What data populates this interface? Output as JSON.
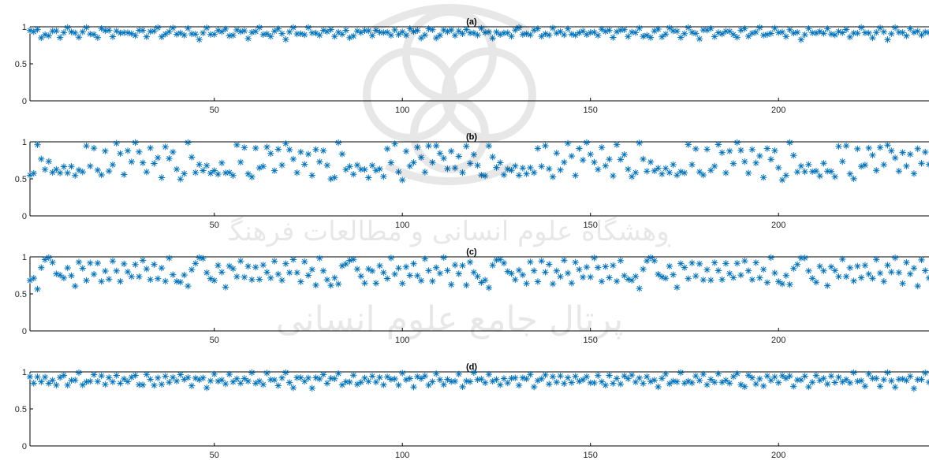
{
  "figure": {
    "watermark_text": "پژوهشگاه علوم انسانی و مطالعات فرهنگی — پرتال جامع علوم انسانی",
    "colors": {
      "marker": "#0072BD",
      "axis": "#000000",
      "background": "#ffffff"
    }
  },
  "chart_data": [
    {
      "type": "scatter",
      "title": "(a)",
      "marker": "*",
      "xlim": [
        1,
        240
      ],
      "ylim": [
        0,
        1
      ],
      "xticks": [
        50,
        100,
        150,
        200
      ],
      "yticks": [
        0,
        0.5,
        1
      ],
      "ytick_labels": [
        "0",
        "0.5",
        "1"
      ],
      "grid": false,
      "n_points": 240,
      "x": "1..240 (integer sample index)",
      "y_profile": [
        [
          0.95,
          0.9,
          0.95,
          0.88,
          0.92,
          0.86,
          0.91,
          0.95,
          0.89,
          0.93,
          0.97,
          0.91,
          0.94,
          0.89,
          0.92,
          0.96,
          0.9,
          0.93,
          0.87,
          0.95
        ],
        [
          0.92,
          0.97,
          0.9,
          0.94,
          0.88,
          0.91,
          0.95,
          0.93,
          0.86,
          0.92,
          0.96,
          0.9,
          0.94,
          0.91,
          0.97,
          0.89,
          0.93,
          0.92,
          0.95,
          0.9
        ]
      ]
    },
    {
      "type": "scatter",
      "title": "(b)",
      "marker": "*",
      "xlim": [
        1,
        240
      ],
      "ylim": [
        0,
        1
      ],
      "xticks": [
        50,
        100,
        150,
        200
      ],
      "yticks": [
        0,
        0.5,
        1
      ],
      "ytick_labels": [
        "0",
        "0.5",
        "1"
      ],
      "grid": false,
      "n_points": 240,
      "x": "1..240 (integer sample index)",
      "y_profile": [
        [
          0.52,
          0.55,
          0.98,
          0.8,
          0.62,
          0.7,
          0.58,
          0.66,
          0.6,
          0.64,
          0.55,
          0.68,
          0.58,
          0.62,
          0.56,
          0.93,
          0.7,
          0.94,
          0.6,
          0.52
        ],
        [
          0.88,
          0.64,
          0.7,
          0.95,
          0.82,
          0.58,
          0.91,
          0.72,
          0.98,
          0.86,
          0.75,
          0.61,
          0.89,
          0.68,
          0.8,
          0.55,
          0.93,
          0.74,
          0.85,
          0.66
        ]
      ]
    },
    {
      "type": "scatter",
      "title": "(c)",
      "marker": "*",
      "xlim": [
        1,
        240
      ],
      "ylim": [
        0,
        1
      ],
      "xticks": [
        50,
        100,
        150,
        200
      ],
      "yticks": [
        0,
        0.5,
        1
      ],
      "ytick_labels": [
        "0",
        "0.5",
        "1"
      ],
      "grid": false,
      "n_points": 240,
      "x": "1..240 (integer sample index)",
      "y_profile": [
        [
          0.65,
          0.72,
          0.6,
          0.86,
          0.93,
          0.98,
          0.95,
          0.8,
          0.74,
          0.68,
          0.85,
          0.78,
          0.62,
          0.9,
          0.82,
          0.7,
          0.95,
          0.76,
          0.88,
          0.66
        ],
        [
          0.84,
          0.72,
          0.92,
          0.78,
          0.68,
          0.94,
          0.8,
          0.7,
          0.88,
          0.76,
          0.98,
          0.82,
          0.66,
          0.9,
          0.74,
          0.86,
          0.64,
          0.96,
          0.78,
          0.7
        ]
      ]
    },
    {
      "type": "scatter",
      "title": "(d)",
      "marker": "*",
      "xlim": [
        1,
        240
      ],
      "ylim": [
        0,
        1
      ],
      "xticks": [
        50,
        100,
        150,
        200
      ],
      "yticks": [
        0,
        0.5,
        1
      ],
      "ytick_labels": [
        "0",
        "0.5",
        "1"
      ],
      "grid": false,
      "n_points": 240,
      "x": "1..240 (integer sample index)",
      "y_profile": [
        [
          0.93,
          0.88,
          0.95,
          0.84,
          0.9,
          0.86,
          0.92,
          0.82,
          0.89,
          0.94,
          0.85,
          0.91,
          0.87,
          0.96,
          0.83,
          0.9,
          0.88,
          0.93,
          0.85,
          0.97
        ],
        [
          0.86,
          0.91,
          0.83,
          0.95,
          0.88,
          0.92,
          0.84,
          0.9,
          0.97,
          0.86,
          0.82,
          0.93,
          0.89,
          0.85,
          0.94,
          0.81,
          0.91,
          0.87,
          0.96,
          0.88
        ]
      ]
    }
  ]
}
